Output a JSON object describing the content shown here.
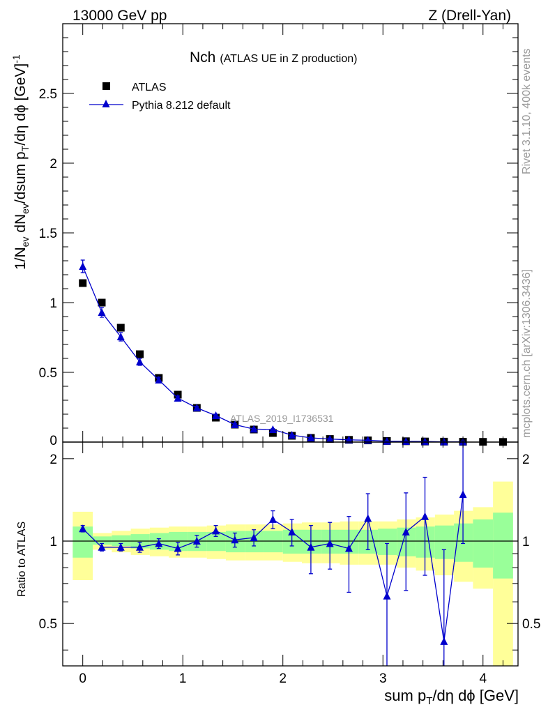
{
  "header": {
    "energy_label": "13000 GeV pp",
    "process_label": "Z (Drell-Yan)"
  },
  "side_text": {
    "rivet": "Rivet 3.1.10,  400k events",
    "mcplots": "mcplots.cern.ch [arXiv:1306.3436]"
  },
  "plot_title": {
    "main": "Nch",
    "sub": "(ATLAS UE in Z production)"
  },
  "analysis_tag": "ATLAS_2019_I1736531",
  "legend": {
    "data": "ATLAS",
    "mc": "Pythia 8.212 default"
  },
  "axes": {
    "xlabel_main": "sum p",
    "xlabel_sub": "T",
    "xlabel_rest": "/dη dϕ [GeV]",
    "ylabel_top_parts": [
      "1/N",
      "ev",
      " dN",
      "ev",
      "/dsum p",
      "T",
      "/dη dϕ  [GeV]",
      "-1"
    ],
    "ylabel_bottom": "Ratio to ATLAS"
  },
  "colors": {
    "mc": "#0000cc",
    "data": "#000000",
    "band_inner": "#99ff99",
    "band_outer": "#ffff99"
  },
  "chart_data": [
    {
      "type": "scatter",
      "panel": "main",
      "xlim": [
        -0.2,
        4.35
      ],
      "ylim": [
        0,
        3.0
      ],
      "xticks": [
        0,
        1,
        2,
        3,
        4
      ],
      "yticks": [
        0.5,
        1,
        1.5,
        2,
        2.5
      ],
      "ytick_labels": [
        "0.5",
        "1",
        "1.5",
        "2",
        "2.5"
      ],
      "y_zero_label": "0",
      "x": [
        0.0,
        0.19,
        0.38,
        0.57,
        0.76,
        0.95,
        1.14,
        1.33,
        1.52,
        1.71,
        1.9,
        2.09,
        2.28,
        2.47,
        2.66,
        2.85,
        3.04,
        3.23,
        3.42,
        3.61,
        3.8,
        4.0,
        4.2
      ],
      "series": [
        {
          "name": "ATLAS",
          "values": [
            1.14,
            1.0,
            0.82,
            0.63,
            0.46,
            0.34,
            0.245,
            0.175,
            0.125,
            0.09,
            0.065,
            0.045,
            0.03,
            0.022,
            0.016,
            0.012,
            0.008,
            0.006,
            0.004,
            0.003,
            0.002,
            0.0015,
            0.001
          ]
        },
        {
          "name": "Pythia 8.212 default",
          "values": [
            1.26,
            0.93,
            0.755,
            0.575,
            0.445,
            0.315,
            0.245,
            0.19,
            0.125,
            0.093,
            0.09,
            0.05,
            0.03,
            0.022,
            0.016,
            0.013,
            0.006,
            0.005,
            0.004,
            0.002,
            0.002
          ],
          "errors": [
            0.045,
            0.035,
            0.03,
            0.025,
            0.02,
            0.015,
            0.012,
            0.01,
            0.008,
            0.006,
            0.006,
            0.004,
            0.003,
            0.002,
            0.002,
            0.002,
            0.002,
            0.002,
            0.002,
            0.002,
            0.002
          ]
        }
      ]
    },
    {
      "type": "scatter",
      "panel": "ratio",
      "xlim": [
        -0.2,
        4.35
      ],
      "ylim": [
        0.35,
        2.3
      ],
      "yticks": [
        0.5,
        1,
        2
      ],
      "ytick_labels": [
        "0.5",
        "1",
        "2"
      ],
      "xtick_labels": [
        "0",
        "1",
        "2",
        "3",
        "4"
      ],
      "bands": {
        "edges": [
          -0.1,
          0.1,
          0.29,
          0.48,
          0.67,
          0.86,
          1.05,
          1.24,
          1.43,
          1.62,
          1.81,
          2.0,
          2.19,
          2.38,
          2.57,
          2.76,
          2.95,
          3.14,
          3.33,
          3.52,
          3.71,
          3.9,
          4.1,
          4.3
        ],
        "inner_lo": [
          0.87,
          0.97,
          0.96,
          0.94,
          0.93,
          0.92,
          0.92,
          0.92,
          0.91,
          0.91,
          0.91,
          0.9,
          0.9,
          0.9,
          0.9,
          0.9,
          0.89,
          0.88,
          0.87,
          0.86,
          0.84,
          0.8,
          0.73
        ],
        "inner_hi": [
          1.13,
          1.04,
          1.05,
          1.06,
          1.07,
          1.08,
          1.08,
          1.08,
          1.09,
          1.09,
          1.09,
          1.1,
          1.1,
          1.1,
          1.1,
          1.1,
          1.11,
          1.12,
          1.13,
          1.14,
          1.16,
          1.2,
          1.27
        ],
        "outer_lo": [
          0.72,
          0.93,
          0.91,
          0.89,
          0.88,
          0.87,
          0.87,
          0.86,
          0.85,
          0.85,
          0.85,
          0.84,
          0.83,
          0.83,
          0.82,
          0.82,
          0.82,
          0.8,
          0.78,
          0.75,
          0.71,
          0.67,
          0.35
        ],
        "outer_hi": [
          1.28,
          1.07,
          1.09,
          1.11,
          1.12,
          1.13,
          1.13,
          1.14,
          1.15,
          1.15,
          1.15,
          1.16,
          1.17,
          1.17,
          1.18,
          1.18,
          1.18,
          1.2,
          1.22,
          1.25,
          1.29,
          1.33,
          1.65
        ]
      },
      "x": [
        0.0,
        0.19,
        0.38,
        0.57,
        0.76,
        0.95,
        1.14,
        1.33,
        1.52,
        1.71,
        1.9,
        2.09,
        2.28,
        2.47,
        2.66,
        2.85,
        3.04,
        3.23,
        3.42,
        3.61,
        3.8
      ],
      "values": [
        1.11,
        0.95,
        0.95,
        0.95,
        0.98,
        0.94,
        1.0,
        1.09,
        1.01,
        1.03,
        1.2,
        1.08,
        0.95,
        0.98,
        0.94,
        1.21,
        0.63,
        1.08,
        1.23,
        0.43,
        1.48
      ],
      "err_lo": [
        0.03,
        0.03,
        0.03,
        0.04,
        0.04,
        0.05,
        0.05,
        0.05,
        0.06,
        0.07,
        0.09,
        0.12,
        0.19,
        0.19,
        0.29,
        0.28,
        0.35,
        0.42,
        0.48,
        0.6,
        0.5
      ],
      "err_hi": [
        0.03,
        0.03,
        0.03,
        0.04,
        0.04,
        0.05,
        0.05,
        0.05,
        0.06,
        0.07,
        0.09,
        0.12,
        0.19,
        0.19,
        0.29,
        0.28,
        0.35,
        0.42,
        0.48,
        0.5,
        0.8
      ]
    }
  ]
}
